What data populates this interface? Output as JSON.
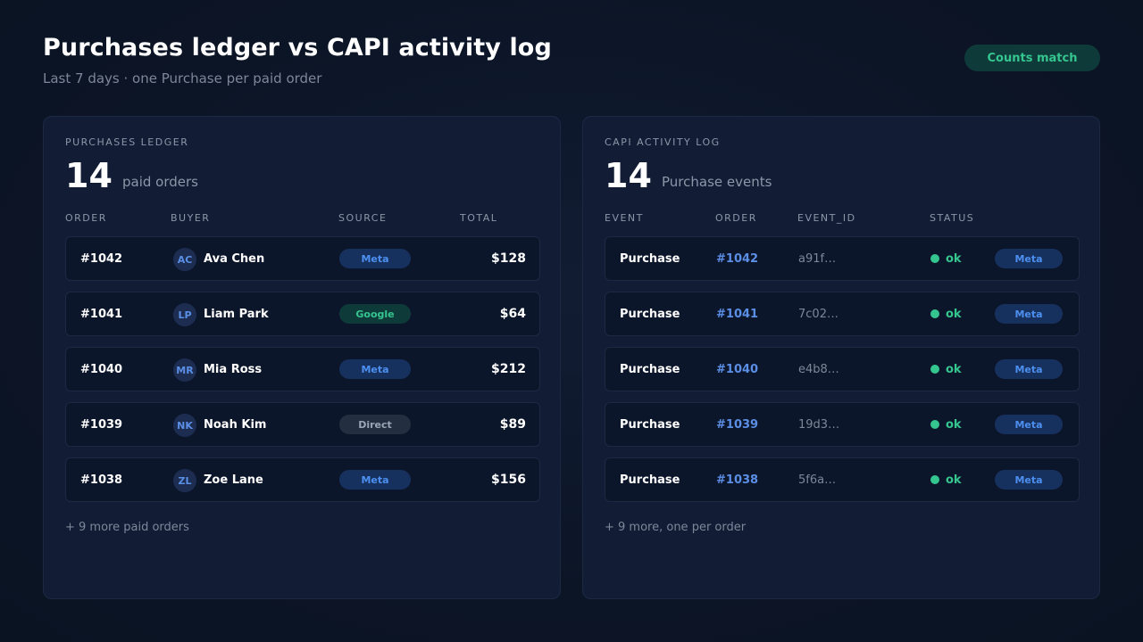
{
  "header": {
    "title": "Purchases ledger vs CAPI activity log",
    "subtitle": "Last 7 days · one Purchase per paid order",
    "status_pill": "Counts match"
  },
  "ledger": {
    "label": "PURCHASES LEDGER",
    "count": "14",
    "count_label": "paid orders",
    "columns": [
      "ORDER",
      "BUYER",
      "SOURCE",
      "TOTAL"
    ],
    "rows": [
      {
        "order": "#1042",
        "initials": "AC",
        "buyer": "Ava Chen",
        "source": "Meta",
        "total": "$128"
      },
      {
        "order": "#1041",
        "initials": "LP",
        "buyer": "Liam Park",
        "source": "Google",
        "total": "$64"
      },
      {
        "order": "#1040",
        "initials": "MR",
        "buyer": "Mia Ross",
        "source": "Meta",
        "total": "$212"
      },
      {
        "order": "#1039",
        "initials": "NK",
        "buyer": "Noah Kim",
        "source": "Direct",
        "total": "$89"
      },
      {
        "order": "#1038",
        "initials": "ZL",
        "buyer": "Zoe Lane",
        "source": "Meta",
        "total": "$156"
      }
    ],
    "more": "+ 9 more paid orders"
  },
  "capi": {
    "label": "CAPI ACTIVITY LOG",
    "count": "14",
    "count_label": "Purchase events",
    "columns": [
      "EVENT",
      "ORDER",
      "EVENT_ID",
      "STATUS"
    ],
    "rows": [
      {
        "event": "Purchase",
        "order": "#1042",
        "event_id": "a91f…",
        "status": "ok",
        "source": "Meta"
      },
      {
        "event": "Purchase",
        "order": "#1041",
        "event_id": "7c02…",
        "status": "ok",
        "source": "Meta"
      },
      {
        "event": "Purchase",
        "order": "#1040",
        "event_id": "e4b8…",
        "status": "ok",
        "source": "Meta"
      },
      {
        "event": "Purchase",
        "order": "#1039",
        "event_id": "19d3…",
        "status": "ok",
        "source": "Meta"
      },
      {
        "event": "Purchase",
        "order": "#1038",
        "event_id": "5f6a…",
        "status": "ok",
        "source": "Meta"
      }
    ],
    "more": "+ 9 more, one per order"
  },
  "colors": {
    "background": "#0c1526",
    "panel": "#121d35",
    "accent_blue": "#4d8fef",
    "accent_green": "#35c58f"
  }
}
